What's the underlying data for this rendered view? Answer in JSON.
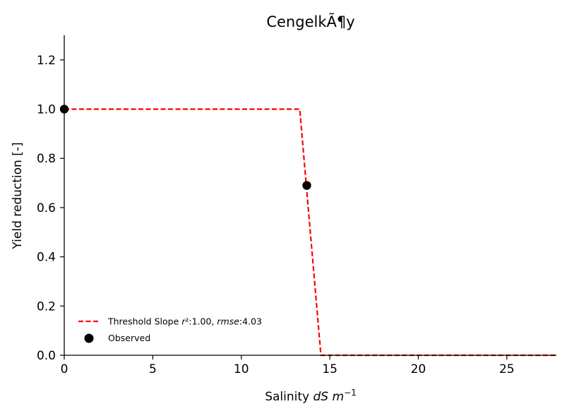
{
  "chart_data": {
    "type": "line",
    "title": "CengelkÃ¶y",
    "xlabel": {
      "prefix": "Salinity ",
      "italic": "dS m",
      "sup": "−1"
    },
    "ylabel": "Yield reduction [-]",
    "xlim": [
      0,
      27.8
    ],
    "ylim": [
      0,
      1.3
    ],
    "xticks": [
      0,
      5,
      10,
      15,
      20,
      25
    ],
    "yticks": [
      0.0,
      0.2,
      0.4,
      0.6,
      0.8,
      1.0,
      1.2
    ],
    "xtick_labels": [
      "0",
      "5",
      "10",
      "15",
      "20",
      "25"
    ],
    "ytick_labels": [
      "0.0",
      "0.2",
      "0.4",
      "0.6",
      "0.8",
      "1.0",
      "1.2"
    ],
    "grid": false,
    "legend_position": "lower-left",
    "series": [
      {
        "name": "Threshold Slope r²:1.00, rmse:4.03",
        "legend": {
          "before": "Threshold Slope ",
          "i1": "r",
          "mid1": "²:1.00, ",
          "i2": "rmse",
          "after": ":4.03"
        },
        "kind": "line",
        "style": "dashed",
        "color": "#ff0000",
        "x": [
          0,
          13.3,
          14.5,
          27.8
        ],
        "y": [
          1.0,
          1.0,
          0.0,
          0.0
        ]
      },
      {
        "name": "Observed",
        "kind": "scatter",
        "color": "#000000",
        "x": [
          0,
          13.7
        ],
        "y": [
          1.0,
          0.69
        ]
      }
    ]
  }
}
